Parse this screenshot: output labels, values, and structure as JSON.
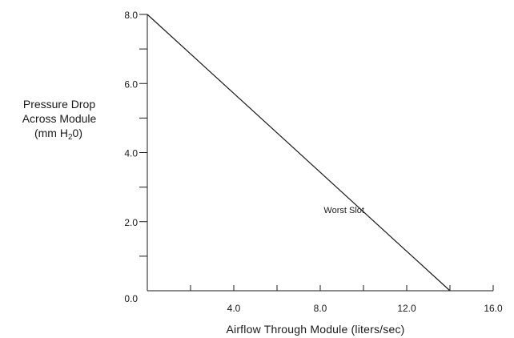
{
  "chart_data": {
    "type": "line",
    "xlabel": "Airflow Through Module (liters/sec)",
    "ylabel_lines": [
      "Pressure Drop",
      "Across Module",
      "(mm H",
      "2",
      "0)"
    ],
    "xlim": [
      0,
      16
    ],
    "ylim": [
      0,
      8
    ],
    "x_ticks": [
      0,
      2,
      4,
      6,
      8,
      10,
      12,
      14,
      16
    ],
    "x_tick_labels": [
      {
        "value": 4,
        "label": "4.0"
      },
      {
        "value": 8,
        "label": "8.0"
      },
      {
        "value": 12,
        "label": "12.0"
      },
      {
        "value": 16,
        "label": "16.0"
      }
    ],
    "y_ticks": [
      1,
      2,
      3,
      4,
      5,
      6,
      7,
      8
    ],
    "y_tick_labels": [
      {
        "value": 0,
        "label": "0.0"
      },
      {
        "value": 2,
        "label": "2.0"
      },
      {
        "value": 4,
        "label": "4.0"
      },
      {
        "value": 6,
        "label": "6.0"
      },
      {
        "value": 8,
        "label": "8.0"
      }
    ],
    "grid": false,
    "series": [
      {
        "x": [
          0,
          14
        ],
        "y": [
          8,
          0
        ]
      }
    ],
    "annotations": [
      {
        "text": "Worst Slot",
        "x": 9.1,
        "y": 2.25
      }
    ]
  }
}
